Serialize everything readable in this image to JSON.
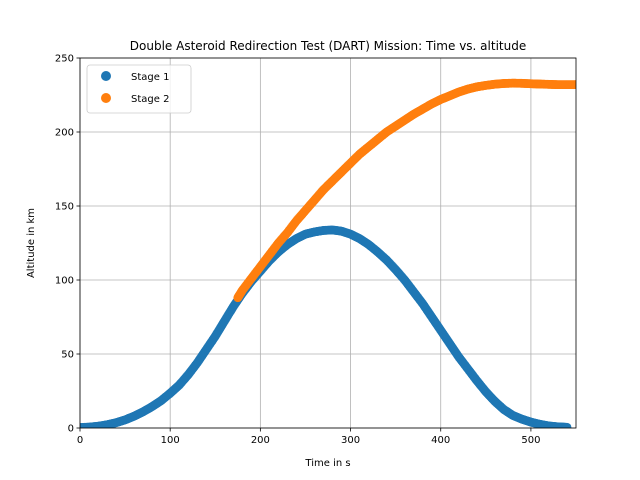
{
  "chart_data": {
    "type": "scatter",
    "title": "Double Asteroid Redirection Test (DART) Mission: Time vs. altitude",
    "xlabel": "Time in s",
    "ylabel": "Altitude in km",
    "xlim": [
      0,
      550
    ],
    "ylim": [
      0,
      250
    ],
    "xticks": [
      "0",
      "100",
      "200",
      "300",
      "400",
      "500"
    ],
    "yticks": [
      "0",
      "50",
      "100",
      "150",
      "200",
      "250"
    ],
    "grid": true,
    "legend": "top-left",
    "series": [
      {
        "name": "Stage 1",
        "color": "#1f77b4",
        "points": [
          [
            0,
            0.3
          ],
          [
            10,
            0.6
          ],
          [
            20,
            1.2
          ],
          [
            30,
            2.2
          ],
          [
            40,
            3.6
          ],
          [
            50,
            5.5
          ],
          [
            60,
            8
          ],
          [
            70,
            11
          ],
          [
            80,
            14.5
          ],
          [
            90,
            18.5
          ],
          [
            100,
            23.5
          ],
          [
            110,
            29
          ],
          [
            120,
            36
          ],
          [
            130,
            44
          ],
          [
            140,
            53
          ],
          [
            150,
            62
          ],
          [
            160,
            72
          ],
          [
            170,
            82
          ],
          [
            180,
            91
          ],
          [
            190,
            99
          ],
          [
            200,
            106
          ],
          [
            210,
            113
          ],
          [
            220,
            119
          ],
          [
            230,
            124
          ],
          [
            240,
            128
          ],
          [
            250,
            131
          ],
          [
            260,
            132.5
          ],
          [
            270,
            133.5
          ],
          [
            280,
            133.8
          ],
          [
            290,
            133
          ],
          [
            300,
            131
          ],
          [
            310,
            128
          ],
          [
            320,
            124
          ],
          [
            330,
            119
          ],
          [
            340,
            113.5
          ],
          [
            350,
            107
          ],
          [
            360,
            100
          ],
          [
            370,
            92
          ],
          [
            380,
            84
          ],
          [
            390,
            75
          ],
          [
            400,
            66
          ],
          [
            410,
            57
          ],
          [
            420,
            48
          ],
          [
            430,
            40
          ],
          [
            440,
            32
          ],
          [
            450,
            24.5
          ],
          [
            460,
            18
          ],
          [
            470,
            12.5
          ],
          [
            480,
            8.5
          ],
          [
            490,
            6
          ],
          [
            500,
            4
          ],
          [
            510,
            2.5
          ],
          [
            520,
            1.4
          ],
          [
            530,
            0.8
          ],
          [
            540,
            0.5
          ]
        ]
      },
      {
        "name": "Stage 2",
        "color": "#ff7f0e",
        "points": [
          [
            175,
            88
          ],
          [
            180,
            93
          ],
          [
            190,
            101
          ],
          [
            200,
            109
          ],
          [
            210,
            117
          ],
          [
            220,
            125
          ],
          [
            230,
            132
          ],
          [
            240,
            140
          ],
          [
            250,
            147
          ],
          [
            260,
            154
          ],
          [
            270,
            161
          ],
          [
            280,
            167
          ],
          [
            290,
            173
          ],
          [
            300,
            179
          ],
          [
            310,
            185
          ],
          [
            320,
            190
          ],
          [
            330,
            195
          ],
          [
            340,
            200
          ],
          [
            350,
            204
          ],
          [
            360,
            208
          ],
          [
            370,
            212
          ],
          [
            380,
            215.5
          ],
          [
            390,
            219
          ],
          [
            400,
            222
          ],
          [
            410,
            224.5
          ],
          [
            420,
            227
          ],
          [
            430,
            229
          ],
          [
            440,
            230.5
          ],
          [
            450,
            231.5
          ],
          [
            460,
            232.3
          ],
          [
            470,
            232.8
          ],
          [
            480,
            233
          ],
          [
            490,
            232.9
          ],
          [
            500,
            232.6
          ],
          [
            510,
            232.4
          ],
          [
            520,
            232.2
          ],
          [
            530,
            232
          ],
          [
            540,
            232
          ],
          [
            550,
            232
          ]
        ]
      }
    ]
  }
}
